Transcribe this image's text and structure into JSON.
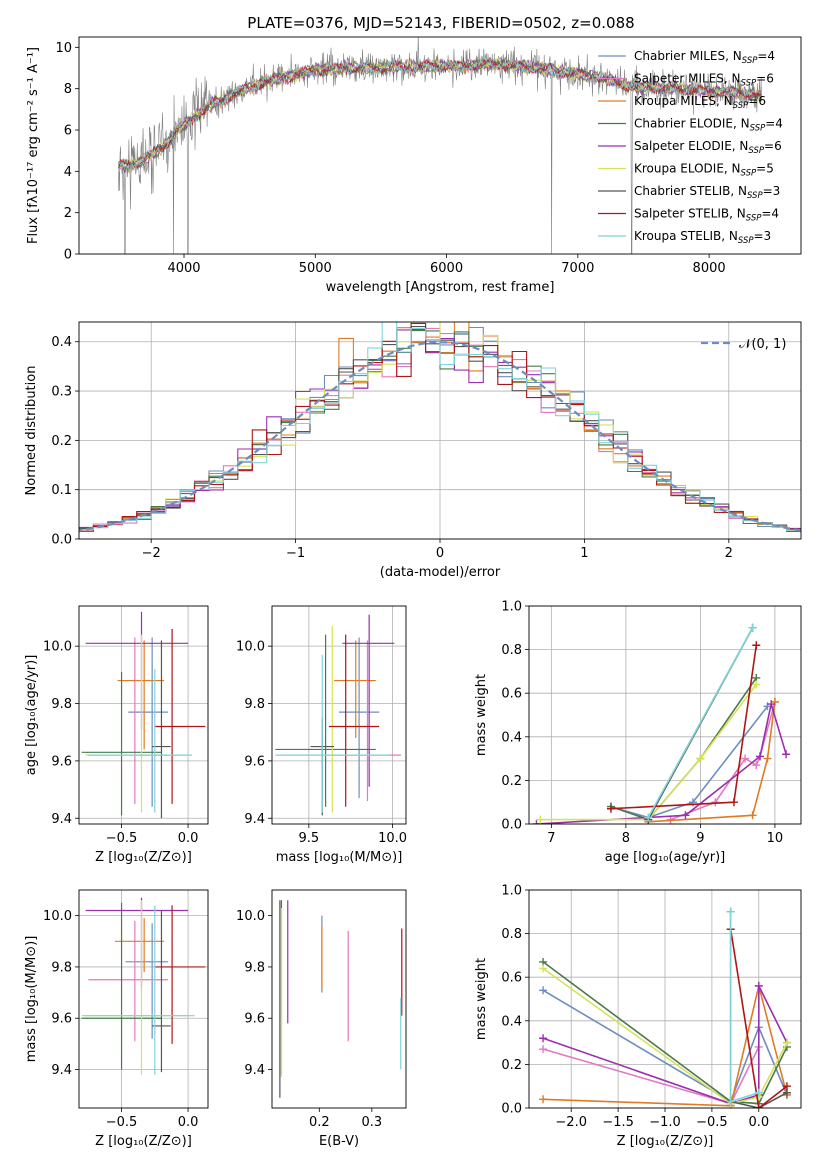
{
  "figure": {
    "title": "PLATE=0376, MJD=52143, FIBERID=0502, z=0.088"
  },
  "colors": {
    "Chabrier MILES": "#6c8ebf",
    "Salpeter MILES": "#e377c2",
    "Kroupa MILES": "#e07b25",
    "Chabrier ELODIE": "#4a7a4a",
    "Salpeter ELODIE": "#9a2fb0",
    "Kroupa ELODIE": "#d6e25a",
    "Chabrier STELIB": "#555555",
    "Salpeter STELIB": "#b01515",
    "Kroupa STELIB": "#7fd4d8",
    "data": "#808080",
    "normal": "#6c8ebf"
  },
  "chart_data": [
    {
      "id": "spectrum",
      "type": "line",
      "title": "PLATE=0376, MJD=52143, FIBERID=0502, z=0.088",
      "xlabel": "wavelength [Angstrom, rest frame]",
      "ylabel": "Flux [fλ10⁻¹⁷ erg cm⁻² s⁻¹ A⁻¹]",
      "xlim": [
        3200,
        8700
      ],
      "ylim": [
        0,
        10.5
      ],
      "xticks": [
        4000,
        5000,
        6000,
        7000,
        8000
      ],
      "yticks": [
        0,
        2,
        4,
        6,
        8,
        10
      ],
      "grid": false,
      "legend_position": "right",
      "legend": [
        {
          "label": "Chabrier MILES, N",
          "sub": "SSP",
          "tail": "=4"
        },
        {
          "label": "Salpeter MILES, N",
          "sub": "SSP",
          "tail": "=6"
        },
        {
          "label": "Kroupa MILES, N",
          "sub": "SSP",
          "tail": "=6"
        },
        {
          "label": "Chabrier ELODIE, N",
          "sub": "SSP",
          "tail": "=4"
        },
        {
          "label": "Salpeter ELODIE, N",
          "sub": "SSP",
          "tail": "=6"
        },
        {
          "label": "Kroupa ELODIE, N",
          "sub": "SSP",
          "tail": "=5"
        },
        {
          "label": "Chabrier STELIB, N",
          "sub": "SSP",
          "tail": "=3"
        },
        {
          "label": "Salpeter STELIB, N",
          "sub": "SSP",
          "tail": "=4"
        },
        {
          "label": "Kroupa STELIB, N",
          "sub": "SSP",
          "tail": "=3"
        }
      ],
      "continuum": {
        "x": [
          3500,
          3550,
          3650,
          3750,
          3850,
          3950,
          4050,
          4200,
          4400,
          4600,
          4800,
          5000,
          5200,
          5500,
          5800,
          6100,
          6400,
          6700,
          7000,
          7200,
          7400,
          7700,
          8000,
          8300,
          8400
        ],
        "y": [
          4.2,
          4.3,
          4.4,
          4.8,
          5.2,
          6.0,
          6.5,
          7.2,
          7.8,
          8.3,
          8.6,
          8.9,
          9.0,
          9.0,
          9.1,
          9.1,
          9.2,
          9.0,
          8.7,
          8.5,
          8.1,
          8.0,
          7.9,
          7.8,
          7.6
        ]
      },
      "data_dropouts": [
        3550,
        3920,
        4030,
        6800,
        7410
      ]
    },
    {
      "id": "residuals",
      "type": "histogram",
      "xlabel": "(data-model)/error",
      "ylabel": "Normed distribution",
      "xlim": [
        -2.5,
        2.5
      ],
      "ylim": [
        0,
        0.44
      ],
      "xticks": [
        -2,
        -1,
        0,
        1,
        2
      ],
      "yticks": [
        0.0,
        0.1,
        0.2,
        0.3,
        0.4
      ],
      "grid": true,
      "legend": [
        "𝒩(0, 1)"
      ],
      "legend_position": "top-right",
      "bin_width": 0.1,
      "reference": {
        "name": "normal",
        "mean": 0,
        "sigma": 1
      }
    },
    {
      "id": "z-age",
      "type": "errorbar",
      "xlabel": "Z [log₁₀(Z/Z⊙)]",
      "ylabel": "age  [log₁₀(age/yr)]",
      "xlim": [
        -0.82,
        0.15
      ],
      "ylim": [
        9.38,
        10.14
      ],
      "xticks": [
        -0.5,
        0.0
      ],
      "yticks": [
        9.4,
        9.6,
        9.8,
        10.0
      ],
      "grid": true,
      "points": [
        {
          "model": "Chabrier MILES",
          "x": -0.27,
          "y": 9.77,
          "xerr": [
            0.18,
            0.12
          ],
          "yerr": [
            0.33,
            0.26
          ]
        },
        {
          "model": "Salpeter MILES",
          "x": -0.4,
          "y": 9.62,
          "xerr": [
            0.35,
            0.25
          ],
          "yerr": [
            0.17,
            0.41
          ]
        },
        {
          "model": "Kroupa MILES",
          "x": -0.33,
          "y": 9.88,
          "xerr": [
            0.2,
            0.15
          ],
          "yerr": [
            0.24,
            0.14
          ]
        },
        {
          "model": "Chabrier ELODIE",
          "x": -0.5,
          "y": 9.63,
          "xerr": [
            0.3,
            0.3
          ],
          "yerr": [
            0.22,
            0.28
          ]
        },
        {
          "model": "Salpeter ELODIE",
          "x": -0.35,
          "y": 10.01,
          "xerr": [
            0.42,
            0.35
          ],
          "yerr": [
            0.3,
            0.11
          ]
        },
        {
          "model": "Kroupa ELODIE",
          "x": -0.35,
          "y": 9.62,
          "xerr": [
            0.42,
            0.35
          ],
          "yerr": [
            0.2,
            0.42
          ]
        },
        {
          "model": "Chabrier STELIB",
          "x": -0.2,
          "y": 9.65,
          "xerr": [
            0.07,
            0.07
          ],
          "yerr": [
            0.25,
            0.37
          ]
        },
        {
          "model": "Salpeter STELIB",
          "x": -0.12,
          "y": 9.72,
          "xerr": [
            0.13,
            0.25
          ],
          "yerr": [
            0.27,
            0.34
          ]
        },
        {
          "model": "Kroupa STELIB",
          "x": -0.25,
          "y": 9.62,
          "xerr": [
            0.5,
            0.28
          ],
          "yerr": [
            0.2,
            0.3
          ]
        }
      ]
    },
    {
      "id": "mass-age",
      "type": "errorbar",
      "xlabel": "mass [log₁₀(M/M⊙)]",
      "ylabel": "",
      "xlim": [
        9.28,
        10.08
      ],
      "ylim": [
        9.38,
        10.14
      ],
      "xticks": [
        9.5,
        10.0
      ],
      "yticks": [
        9.4,
        9.6,
        9.8,
        10.0
      ],
      "grid": true,
      "points": [
        {
          "model": "Chabrier MILES",
          "x": 9.8,
          "y": 9.77,
          "xerr": [
            0.12,
            0.12
          ],
          "yerr": [
            0.3,
            0.26
          ]
        },
        {
          "model": "Salpeter MILES",
          "x": 9.85,
          "y": 9.62,
          "xerr": [
            0.2,
            0.2
          ],
          "yerr": [
            0.16,
            0.4
          ]
        },
        {
          "model": "Kroupa MILES",
          "x": 9.78,
          "y": 9.88,
          "xerr": [
            0.13,
            0.12
          ],
          "yerr": [
            0.2,
            0.14
          ]
        },
        {
          "model": "Chabrier ELODIE",
          "x": 9.6,
          "y": 9.64,
          "xerr": [
            0.3,
            0.3
          ],
          "yerr": [
            0.2,
            0.4
          ]
        },
        {
          "model": "Salpeter ELODIE",
          "x": 9.86,
          "y": 10.01,
          "xerr": [
            0.16,
            0.15
          ],
          "yerr": [
            0.5,
            0.1
          ]
        },
        {
          "model": "Kroupa ELODIE",
          "x": 9.64,
          "y": 9.62,
          "xerr": [
            0.3,
            0.3
          ],
          "yerr": [
            0.2,
            0.45
          ]
        },
        {
          "model": "Chabrier STELIB",
          "x": 9.58,
          "y": 9.65,
          "xerr": [
            0.07,
            0.07
          ],
          "yerr": [
            0.24,
            0.1
          ]
        },
        {
          "model": "Salpeter STELIB",
          "x": 9.72,
          "y": 9.72,
          "xerr": [
            0.1,
            0.2
          ],
          "yerr": [
            0.28,
            0.32
          ]
        },
        {
          "model": "Kroupa STELIB",
          "x": 9.58,
          "y": 9.62,
          "xerr": [
            0.28,
            0.4
          ],
          "yerr": [
            0.2,
            0.35
          ]
        }
      ]
    },
    {
      "id": "age-weight",
      "type": "line",
      "xlabel": "age  [log₁₀(age/yr)]",
      "ylabel": "mass weight",
      "xlim": [
        6.7,
        10.35
      ],
      "ylim": [
        0,
        1.0
      ],
      "xticks": [
        7,
        8,
        9,
        10
      ],
      "yticks": [
        0.0,
        0.2,
        0.4,
        0.6,
        0.8,
        1.0
      ],
      "grid": true,
      "series": [
        {
          "model": "Chabrier MILES",
          "x": [
            7.8,
            8.3,
            8.9,
            9.9
          ],
          "y": [
            0.08,
            0.03,
            0.1,
            0.54
          ]
        },
        {
          "model": "Salpeter MILES",
          "x": [
            8.6,
            9.2,
            9.6,
            9.75,
            9.8,
            10.0
          ],
          "y": [
            0.02,
            0.1,
            0.3,
            0.27,
            0.31,
            0.56
          ]
        },
        {
          "model": "Kroupa MILES",
          "x": [
            8.3,
            9.7,
            9.9,
            10.0
          ],
          "y": [
            0.01,
            0.04,
            0.3,
            0.56
          ]
        },
        {
          "model": "Chabrier ELODIE",
          "x": [
            7.8,
            8.3,
            9.0,
            9.75
          ],
          "y": [
            0.08,
            0.02,
            0.3,
            0.67
          ]
        },
        {
          "model": "Salpeter ELODIE",
          "x": [
            6.8,
            8.8,
            9.8,
            9.95,
            10.15
          ],
          "y": [
            0.0,
            0.04,
            0.31,
            0.55,
            0.32
          ]
        },
        {
          "model": "Kroupa ELODIE",
          "x": [
            6.85,
            8.3,
            9.0,
            9.75
          ],
          "y": [
            0.02,
            0.02,
            0.3,
            0.64
          ]
        },
        {
          "model": "Chabrier STELIB",
          "x": [
            8.3,
            9.7
          ],
          "y": [
            0.02,
            0.9
          ]
        },
        {
          "model": "Salpeter STELIB",
          "x": [
            7.8,
            9.45,
            9.75
          ],
          "y": [
            0.07,
            0.1,
            0.82
          ]
        },
        {
          "model": "Kroupa STELIB",
          "x": [
            8.3,
            9.7
          ],
          "y": [
            0.03,
            0.9
          ]
        }
      ]
    },
    {
      "id": "z-mass",
      "type": "errorbar",
      "xlabel": "Z [log₁₀(Z/Z⊙)]",
      "ylabel": "mass [log₁₀(M/M⊙)]",
      "xlim": [
        -0.82,
        0.15
      ],
      "ylim": [
        9.25,
        10.1
      ],
      "xticks": [
        -0.5,
        0.0
      ],
      "yticks": [
        9.4,
        9.6,
        9.8,
        10.0
      ],
      "grid": true,
      "points": [
        {
          "model": "Chabrier MILES",
          "x": -0.27,
          "y": 9.82,
          "xerr": [
            0.2,
            0.12
          ],
          "yerr": [
            0.3,
            0.15
          ]
        },
        {
          "model": "Salpeter MILES",
          "x": -0.4,
          "y": 9.75,
          "xerr": [
            0.35,
            0.25
          ],
          "yerr": [
            0.24,
            0.23
          ]
        },
        {
          "model": "Kroupa MILES",
          "x": -0.33,
          "y": 9.9,
          "xerr": [
            0.22,
            0.15
          ],
          "yerr": [
            0.12,
            0.09
          ]
        },
        {
          "model": "Chabrier ELODIE",
          "x": -0.5,
          "y": 9.6,
          "xerr": [
            0.3,
            0.3
          ],
          "yerr": [
            0.2,
            0.45
          ]
        },
        {
          "model": "Salpeter ELODIE",
          "x": -0.35,
          "y": 10.02,
          "xerr": [
            0.42,
            0.35
          ],
          "yerr": [
            0.3,
            0.05
          ]
        },
        {
          "model": "Kroupa ELODIE",
          "x": -0.35,
          "y": 9.61,
          "xerr": [
            0.42,
            0.35
          ],
          "yerr": [
            0.23,
            0.45
          ]
        },
        {
          "model": "Chabrier STELIB",
          "x": -0.2,
          "y": 9.57,
          "xerr": [
            0.07,
            0.07
          ],
          "yerr": [
            0.18,
            0.45
          ]
        },
        {
          "model": "Salpeter STELIB",
          "x": -0.12,
          "y": 9.8,
          "xerr": [
            0.13,
            0.25
          ],
          "yerr": [
            0.3,
            0.24
          ]
        },
        {
          "model": "Kroupa STELIB",
          "x": -0.25,
          "y": 9.61,
          "xerr": [
            0.55,
            0.3
          ],
          "yerr": [
            0.23,
            0.43
          ]
        }
      ]
    },
    {
      "id": "ebv-mass",
      "type": "errorbar",
      "xlabel": "E(B-V)",
      "ylabel": "",
      "xlim": [
        0.11,
        0.365
      ],
      "ylim": [
        9.25,
        10.1
      ],
      "xticks": [
        0.1,
        0.2,
        0.3
      ],
      "yticks": [
        9.4,
        9.6,
        9.8,
        10.0
      ],
      "grid": false,
      "points": [
        {
          "model": "Chabrier MILES",
          "x": 0.205,
          "y": 9.82,
          "xerr": [
            0,
            0
          ],
          "yerr": [
            0.12,
            0.18
          ]
        },
        {
          "model": "Salpeter MILES",
          "x": 0.255,
          "y": 9.75,
          "xerr": [
            0,
            0
          ],
          "yerr": [
            0.24,
            0.19
          ]
        },
        {
          "model": "Kroupa MILES",
          "x": 0.205,
          "y": 9.84,
          "xerr": [
            0,
            0
          ],
          "yerr": [
            0.13,
            0.12
          ]
        },
        {
          "model": "Chabrier ELODIE",
          "x": 0.128,
          "y": 9.65,
          "xerr": [
            0,
            0
          ],
          "yerr": [
            0.27,
            0.41
          ]
        },
        {
          "model": "Salpeter ELODIE",
          "x": 0.14,
          "y": 9.82,
          "xerr": [
            0,
            0
          ],
          "yerr": [
            0.24,
            0.24
          ]
        },
        {
          "model": "Kroupa ELODIE",
          "x": 0.128,
          "y": 9.65,
          "xerr": [
            0,
            0
          ],
          "yerr": [
            0.28,
            0.38
          ]
        },
        {
          "model": "Chabrier STELIB",
          "x": 0.125,
          "y": 9.68,
          "xerr": [
            0,
            0
          ],
          "yerr": [
            0.39,
            0.38
          ]
        },
        {
          "model": "Salpeter STELIB",
          "x": 0.357,
          "y": 9.78,
          "xerr": [
            0,
            0
          ],
          "yerr": [
            0.17,
            0.17
          ]
        },
        {
          "model": "Kroupa STELIB",
          "x": 0.355,
          "y": 9.55,
          "xerr": [
            0,
            0
          ],
          "yerr": [
            0.15,
            0.13
          ]
        }
      ]
    },
    {
      "id": "z-weight",
      "type": "line",
      "xlabel": "Z [log₁₀(Z/Z⊙)]",
      "ylabel": "mass weight",
      "xlim": [
        -2.45,
        0.45
      ],
      "ylim": [
        0,
        1.0
      ],
      "xticks": [
        -2.0,
        -1.5,
        -1.0,
        -0.5,
        0.0
      ],
      "yticks": [
        0.0,
        0.2,
        0.4,
        0.6,
        0.8,
        1.0
      ],
      "grid": true,
      "series": [
        {
          "model": "Chabrier MILES",
          "x": [
            -2.3,
            -0.3,
            0.0,
            0.3
          ],
          "y": [
            0.54,
            0.03,
            0.37,
            0.06
          ]
        },
        {
          "model": "Salpeter MILES",
          "x": [
            -2.3,
            -0.3,
            0.0
          ],
          "y": [
            0.27,
            0.02,
            0.28
          ]
        },
        {
          "model": "Kroupa MILES",
          "x": [
            -2.3,
            -0.3,
            0.0,
            0.3
          ],
          "y": [
            0.04,
            0.01,
            0.56,
            0.06
          ]
        },
        {
          "model": "Chabrier ELODIE",
          "x": [
            -2.3,
            -0.3,
            0.0,
            0.3
          ],
          "y": [
            0.67,
            0.03,
            0.02,
            0.28
          ]
        },
        {
          "model": "Salpeter ELODIE",
          "x": [
            -2.3,
            -0.3,
            0.0,
            0.0,
            0.3
          ],
          "y": [
            0.32,
            0.02,
            0.06,
            0.56,
            0.3
          ]
        },
        {
          "model": "Kroupa ELODIE",
          "x": [
            -2.3,
            -0.3,
            0.0,
            0.3
          ],
          "y": [
            0.64,
            0.02,
            0.05,
            0.3
          ]
        },
        {
          "model": "Chabrier STELIB",
          "x": [
            -0.3,
            -0.3,
            0.0,
            0.3
          ],
          "y": [
            0.9,
            0.03,
            0.0,
            0.07
          ]
        },
        {
          "model": "Salpeter STELIB",
          "x": [
            -0.3,
            0.0,
            0.3
          ],
          "y": [
            0.82,
            0.0,
            0.1
          ]
        },
        {
          "model": "Kroupa STELIB",
          "x": [
            -0.3,
            -0.3,
            0.0
          ],
          "y": [
            0.9,
            0.03,
            0.07
          ]
        }
      ]
    }
  ]
}
